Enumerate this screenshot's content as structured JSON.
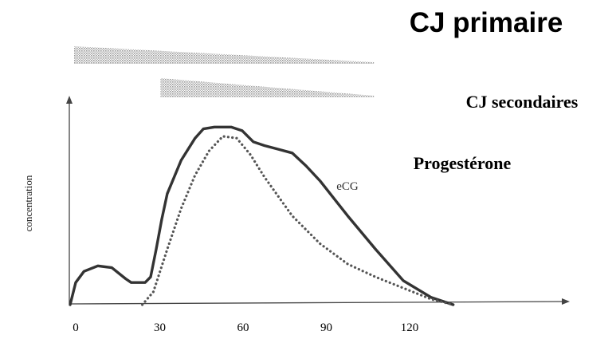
{
  "chart_data": {
    "type": "line",
    "title": "CJ primaire",
    "band_labels": [
      "CJ secondaires"
    ],
    "ylabel": "concentration",
    "xlabel": "",
    "x_ticks": [
      0,
      30,
      60,
      90,
      120
    ],
    "xlim": [
      0,
      150
    ],
    "ylim": [
      0,
      1
    ],
    "series": [
      {
        "name": "Progestérone",
        "style": "solid",
        "x": [
          0,
          2,
          5,
          10,
          15,
          20,
          22,
          25,
          27,
          29,
          31,
          33,
          35,
          40,
          45,
          48,
          52,
          58,
          62,
          66,
          70,
          75,
          80,
          85,
          90,
          100,
          110,
          120,
          130,
          138
        ],
        "y": [
          0.0,
          0.12,
          0.18,
          0.21,
          0.2,
          0.14,
          0.12,
          0.12,
          0.12,
          0.15,
          0.3,
          0.46,
          0.6,
          0.78,
          0.9,
          0.95,
          0.96,
          0.96,
          0.94,
          0.88,
          0.86,
          0.84,
          0.82,
          0.75,
          0.67,
          0.48,
          0.3,
          0.13,
          0.04,
          0.0
        ]
      },
      {
        "name": "eCG",
        "style": "dotted",
        "x": [
          26,
          30,
          35,
          40,
          45,
          50,
          55,
          60,
          65,
          70,
          80,
          90,
          100,
          110,
          120,
          130,
          138
        ],
        "y": [
          0.0,
          0.07,
          0.3,
          0.52,
          0.7,
          0.83,
          0.91,
          0.9,
          0.81,
          0.69,
          0.48,
          0.33,
          0.22,
          0.15,
          0.09,
          0.03,
          0.0
        ]
      }
    ],
    "bands": [
      {
        "name": "CJ primaire",
        "x_start": 0,
        "x_end": 110
      },
      {
        "name": "CJ secondaires",
        "x_start": 32,
        "x_end": 110
      }
    ]
  }
}
